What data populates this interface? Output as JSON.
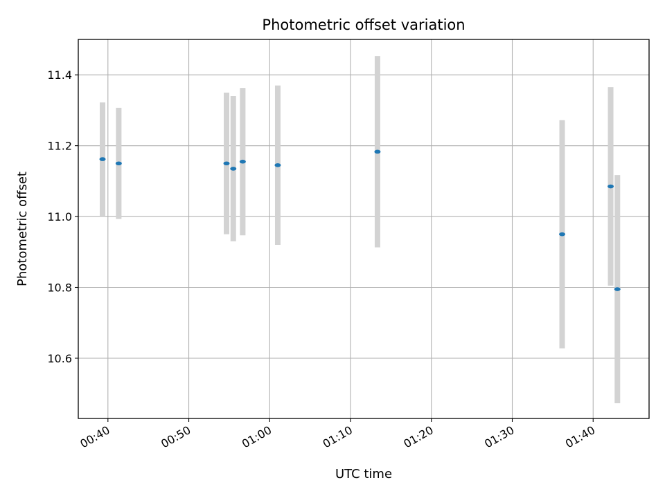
{
  "chart_data": {
    "type": "scatter",
    "title": "Photometric offset variation",
    "xlabel": "UTC time",
    "ylabel": "Photometric offset",
    "x_tick_labels": [
      "00:40",
      "00:50",
      "01:00",
      "01:10",
      "01:20",
      "01:30",
      "01:40"
    ],
    "y_tick_labels": [
      "10.6",
      "10.8",
      "11.0",
      "11.2",
      "11.4"
    ],
    "x_tick_times": [
      "00:40",
      "00:50",
      "01:00",
      "01:10",
      "01:20",
      "01:30",
      "01:40"
    ],
    "y_ticks": [
      10.6,
      10.8,
      11.0,
      11.2,
      11.4
    ],
    "xlim": [
      "00:36:20",
      "01:46:55"
    ],
    "ylim": [
      10.43,
      11.5
    ],
    "grid": true,
    "marker_color": "#1f77b4",
    "errorbar_color": "#d3d3d3",
    "points": [
      {
        "time": "00:39:20",
        "y": 11.162,
        "err": 0.16
      },
      {
        "time": "00:41:20",
        "y": 11.15,
        "err": 0.157
      },
      {
        "time": "00:54:40",
        "y": 11.15,
        "err": 0.2
      },
      {
        "time": "00:55:30",
        "y": 11.135,
        "err": 0.205
      },
      {
        "time": "00:56:40",
        "y": 11.155,
        "err": 0.208
      },
      {
        "time": "01:01:00",
        "y": 11.145,
        "err": 0.225
      },
      {
        "time": "01:13:20",
        "y": 11.183,
        "err": 0.27
      },
      {
        "time": "01:36:10",
        "y": 10.95,
        "err": 0.322
      },
      {
        "time": "01:42:10",
        "y": 11.085,
        "err": 0.28
      },
      {
        "time": "01:43:00",
        "y": 10.795,
        "err": 0.322
      }
    ]
  }
}
